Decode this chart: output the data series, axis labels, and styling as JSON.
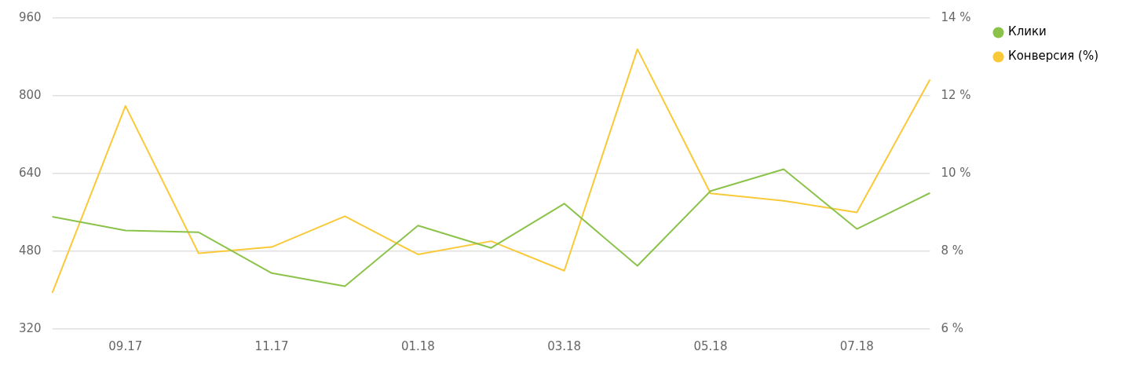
{
  "chart_data": {
    "type": "line",
    "categories": [
      null,
      "09.17",
      null,
      "11.17",
      null,
      "01.18",
      null,
      "03.18",
      null,
      "05.18",
      null,
      "07.18",
      null
    ],
    "series": [
      {
        "name": "Клики",
        "color": "#8bc34a",
        "values": [
          551,
          523,
          519,
          435,
          408,
          533,
          487,
          578,
          450,
          604,
          649,
          526,
          600
        ]
      },
      {
        "name": "Конверсия (%)",
        "color": "#f9c937",
        "axis": "y2",
        "values": [
          6.93,
          11.74,
          7.95,
          8.11,
          8.9,
          7.92,
          8.26,
          7.5,
          13.2,
          9.49,
          9.3,
          9.0,
          12.42
        ]
      }
    ],
    "ylim": [
      320,
      960
    ],
    "yticks": [
      320,
      480,
      640,
      800,
      960
    ],
    "y2lim": [
      6,
      14
    ],
    "y2ticks": [
      {
        "value": 6,
        "label": "6 %"
      },
      {
        "value": 8,
        "label": "8 %"
      },
      {
        "value": 10,
        "label": "10 %"
      },
      {
        "value": 12,
        "label": "12 %"
      },
      {
        "value": 14,
        "label": "14 %"
      }
    ],
    "grid": "y",
    "legend": "top right",
    "marker": "none",
    "line_style": "solid"
  }
}
